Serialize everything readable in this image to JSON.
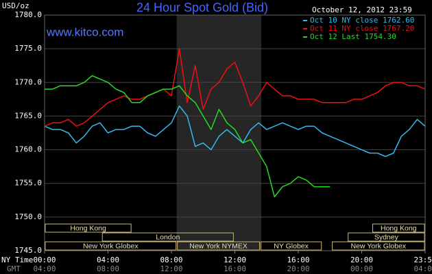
{
  "chart_data": {
    "type": "line",
    "title": "24 Hour Spot Gold (Bid)",
    "watermark": "www.kitco.com",
    "y_label": "USD/oz",
    "timestamp": "October 12, 2012 23:59",
    "x_label": "NY Time",
    "x2_label": "GMT",
    "background": "#000000",
    "shaded_range": [
      8.33,
      13.67
    ],
    "grid": true,
    "legend": "top-right",
    "x": [
      0,
      0.5,
      1,
      1.5,
      2,
      2.5,
      3,
      3.5,
      4,
      4.5,
      5,
      5.5,
      6,
      6.5,
      7,
      7.5,
      8,
      8.5,
      9,
      9.5,
      10,
      10.5,
      11,
      11.5,
      12,
      12.5,
      13,
      13.5,
      14,
      14.5,
      15,
      15.5,
      16,
      16.5,
      17,
      17.5,
      18,
      18.5,
      19,
      19.5,
      20,
      20.5,
      21,
      21.5,
      22,
      22.5,
      23,
      23.5,
      24
    ],
    "xlim": [
      0,
      24
    ],
    "xticks": [
      {
        "value": 0,
        "label": "00:00"
      },
      {
        "value": 4,
        "label": "04:00"
      },
      {
        "value": 8,
        "label": "08:00"
      },
      {
        "value": 12,
        "label": "12:00"
      },
      {
        "value": 16,
        "label": "16:00"
      },
      {
        "value": 20,
        "label": "20:00"
      },
      {
        "value": 24,
        "label": "23:59"
      }
    ],
    "x2ticks": [
      {
        "value": 0,
        "label": "04:00"
      },
      {
        "value": 4,
        "label": "08:00"
      },
      {
        "value": 8,
        "label": "12:00"
      },
      {
        "value": 12,
        "label": "16:00"
      },
      {
        "value": 16,
        "label": "20:00"
      },
      {
        "value": 20,
        "label": "00:00"
      },
      {
        "value": 24,
        "label": "04:00"
      }
    ],
    "ylim": [
      1745,
      1780
    ],
    "yticks": [
      {
        "value": 1745,
        "label": "1745.0"
      },
      {
        "value": 1750,
        "label": "1750.0"
      },
      {
        "value": 1755,
        "label": "1755.0"
      },
      {
        "value": 1760,
        "label": "1760.0"
      },
      {
        "value": 1765,
        "label": "1765.0"
      },
      {
        "value": 1770,
        "label": "1770.0"
      },
      {
        "value": 1775,
        "label": "1775.0"
      },
      {
        "value": 1780,
        "label": "1780.0"
      }
    ],
    "series": [
      {
        "name": "Oct 10 NY close 1762.60",
        "color": "#33bbee",
        "values": [
          1763.5,
          1763,
          1763,
          1762.5,
          1761,
          1762,
          1763.5,
          1764,
          1762.5,
          1763,
          1763,
          1763.5,
          1763.5,
          1762.5,
          1762,
          1763,
          1764,
          1766.5,
          1765,
          1760.5,
          1761,
          1760,
          1762,
          1763,
          1762,
          1761,
          1763,
          1764,
          1763,
          1763.5,
          1764,
          1763.5,
          1763,
          1763.5,
          1763.5,
          1762.5,
          1762,
          1761.5,
          1761,
          1760.5,
          1760,
          1759.5,
          1759.5,
          1759,
          1759.5,
          1762,
          1763,
          1764.5,
          1763.5
        ]
      },
      {
        "name": "Oct 11 NY close 1767.20",
        "color": "#ee1111",
        "values": [
          1763.5,
          1764,
          1764,
          1764.5,
          1763.5,
          1764,
          1765,
          1766,
          1767,
          1767.5,
          1768,
          1767.5,
          1767.5,
          1768,
          1768.5,
          1769,
          1768,
          1775,
          1767,
          1772.5,
          1766,
          1769,
          1770,
          1772,
          1773,
          1770,
          1766.5,
          1768,
          1770,
          1769,
          1768,
          1768,
          1767.5,
          1767.5,
          1767.5,
          1767,
          1767,
          1767,
          1767,
          1767.5,
          1767.5,
          1768,
          1768.5,
          1769.5,
          1770,
          1770,
          1769.5,
          1769.5,
          1769
        ]
      },
      {
        "name": "Oct 12 Last 1754.30",
        "color": "#22dd22",
        "values": [
          1769,
          1769,
          1769.5,
          1769.5,
          1769.5,
          1770,
          1771,
          1770.5,
          1770,
          1769,
          1768.5,
          1767,
          1767,
          1768,
          1768.5,
          1769,
          1769,
          1769.5,
          1768,
          1767,
          1765,
          1763,
          1766,
          1764,
          1763,
          1761,
          1761.5,
          1759.5,
          1757.5,
          1753,
          1754.5,
          1755,
          1756,
          1755.5,
          1754.5,
          1754.5,
          1754.5,
          null,
          null,
          null,
          null,
          null,
          null,
          null,
          null,
          null,
          null,
          null,
          null
        ]
      }
    ],
    "sessions": [
      {
        "label": "Hong Kong",
        "row": 0,
        "start": 0,
        "end": 5.5
      },
      {
        "label": "Hong Kong",
        "row": 0,
        "start": 20.65,
        "end": 24
      },
      {
        "label": "London",
        "row": 1,
        "start": 3.6,
        "end": 11.95
      },
      {
        "label": "Sydney",
        "row": 1,
        "start": 19.1,
        "end": 24
      },
      {
        "label": "New York Globex",
        "row": 2,
        "start": 0,
        "end": 8.33
      },
      {
        "label": "New York NYMEX",
        "row": 2,
        "start": 8.33,
        "end": 13.6
      },
      {
        "label": "NY Globex",
        "row": 2,
        "start": 13.6,
        "end": 17.5
      },
      {
        "label": "New York Globex",
        "row": 2,
        "start": 18.1,
        "end": 24
      }
    ]
  }
}
